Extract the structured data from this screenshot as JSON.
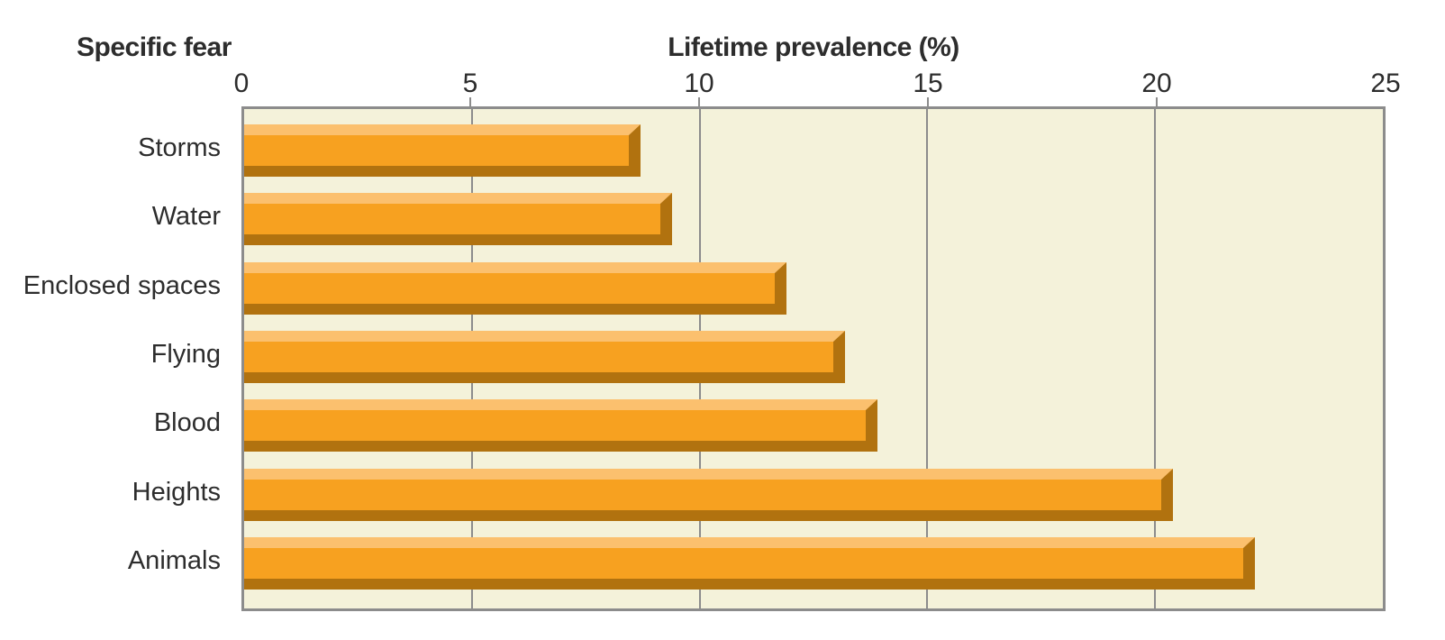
{
  "chart_data": {
    "type": "bar",
    "orientation": "horizontal",
    "title": "Lifetime prevalence (%)",
    "ylabel": "Specific fear",
    "categories": [
      "Storms",
      "Water",
      "Enclosed spaces",
      "Flying",
      "Blood",
      "Heights",
      "Animals"
    ],
    "values": [
      8.7,
      9.4,
      11.9,
      13.2,
      13.9,
      20.4,
      22.2
    ],
    "xlim": [
      0,
      25
    ],
    "xticks": [
      0,
      5,
      10,
      15,
      20,
      25
    ],
    "grid": true,
    "legend": false,
    "bar_style": "3d-bevel",
    "colors": {
      "bar_face": "#F7A120",
      "bar_top": "#FBC06E",
      "bar_shadow": "#B1720F",
      "plot_bg": "#F4F2DA",
      "grid": "#8C8C8C",
      "text": "#2D2D2D",
      "page_bg": "#FFFFFF"
    }
  }
}
